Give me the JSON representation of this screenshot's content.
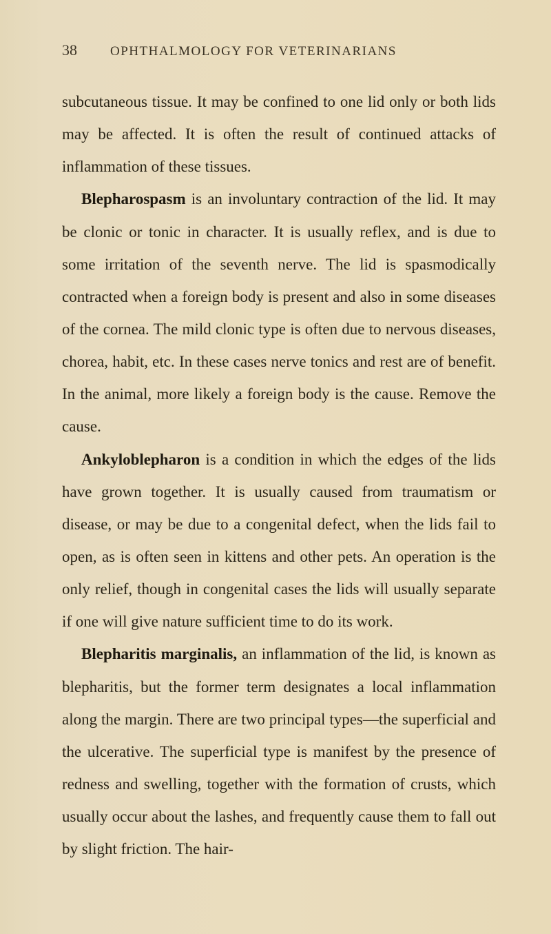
{
  "page": {
    "number": "38",
    "runningHead": "OPHTHALMOLOGY FOR VETERINARIANS"
  },
  "paragraphs": {
    "p1": "subcutaneous tissue. It may be confined to one lid only or both lids may be affected. It is often the result of continued attacks of inflammation of these tissues.",
    "p2_term": "Blepharospasm",
    "p2_rest": " is an involuntary contraction of the lid. It may be clonic or tonic in character. It is usually reflex, and is due to some irritation of the seventh nerve. The lid is spasmodically contracted when a foreign body is present and also in some diseases of the cornea. The mild clonic type is often due to nervous diseases, chorea, habit, etc. In these cases nerve tonics and rest are of benefit. In the animal, more likely a foreign body is the cause. Remove the cause.",
    "p3_term": "Ankyloblepharon",
    "p3_rest": " is a condition in which the edges of the lids have grown together. It is usually caused from traumatism or disease, or may be due to a congenital defect, when the lids fail to open, as is often seen in kittens and other pets. An operation is the only relief, though in congenital cases the lids will usually separate if one will give nature sufficient time to do its work.",
    "p4_term": "Blepharitis marginalis,",
    "p4_rest": " an inflammation of the lid, is known as blepharitis, but the former term designates a local inflammation along the margin. There are two principal types—the superficial and the ulcerative. The superficial type is manifest by the presence of redness and swelling, together with the formation of crusts, which usually occur about the lashes, and frequently cause them to fall out by slight friction. The hair-"
  },
  "style": {
    "background": "#e8dcc0",
    "text_color": "#2c2619",
    "body_fontsize": 23,
    "header_fontsize": 19,
    "pagenum_fontsize": 22,
    "line_height": 2.05,
    "font_family": "Georgia, 'Times New Roman', serif"
  }
}
